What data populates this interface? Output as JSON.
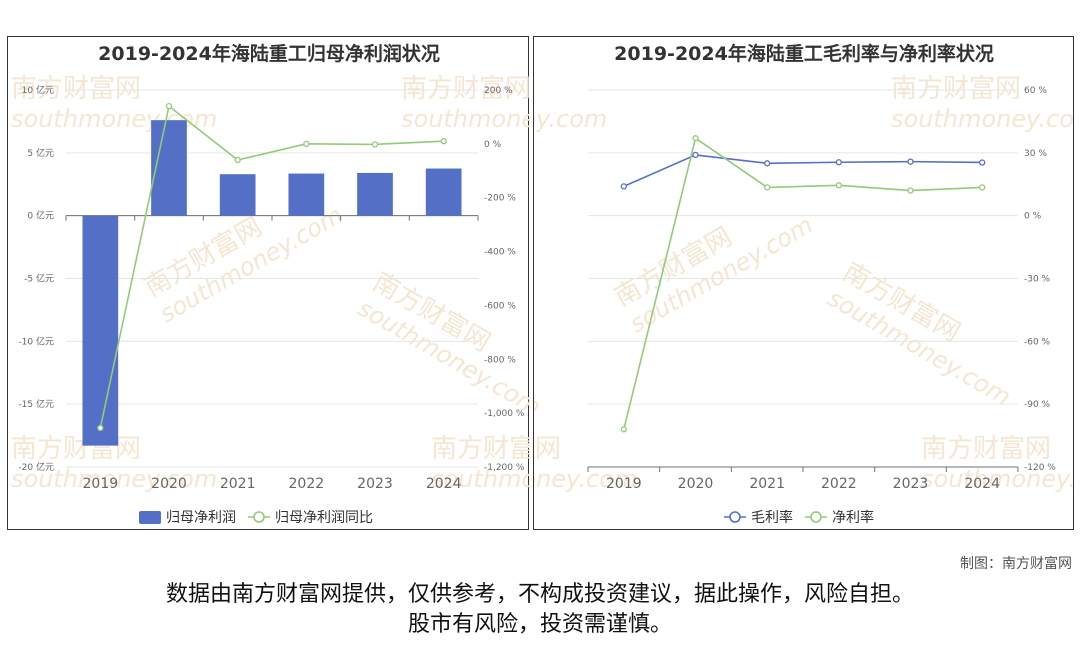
{
  "chart_data": [
    {
      "type": "bar",
      "title": "2019-2024年海陆重工归母净利润状况",
      "categories": [
        "2019",
        "2020",
        "2021",
        "2022",
        "2023",
        "2024"
      ],
      "series": [
        {
          "name": "归母净利润",
          "kind": "bar",
          "axis": "left",
          "values": [
            -18.3,
            7.6,
            3.3,
            3.35,
            3.4,
            3.75
          ]
        },
        {
          "name": "归母净利润同比",
          "kind": "line",
          "axis": "right",
          "values": [
            -1055,
            140,
            -60,
            0,
            -2,
            10
          ]
        }
      ],
      "y_left": {
        "ticks": [
          10,
          5,
          0,
          -5,
          -10,
          -15,
          -20
        ],
        "tick_labels": [
          "10 亿元",
          "5 亿元",
          "0 亿元",
          "-5 亿元",
          "-10 亿元",
          "-15 亿元",
          "-20 亿元"
        ],
        "ylim": [
          -20,
          10
        ]
      },
      "y_right": {
        "ticks": [
          200,
          0,
          -200,
          -400,
          -600,
          -800,
          -1000,
          -1200
        ],
        "tick_labels": [
          "200 %",
          "0 %",
          "-200 %",
          "-400 %",
          "-600 %",
          "-800 %",
          "-1,000 %",
          "-1,200 %"
        ],
        "ylim": [
          -1200,
          200
        ]
      },
      "colors": {
        "bar": "#5470c6",
        "line": "#91cc75"
      },
      "legend_position": "bottom",
      "grid": true
    },
    {
      "type": "line",
      "title": "2019-2024年海陆重工毛利率与净利率状况",
      "categories": [
        "2019",
        "2020",
        "2021",
        "2022",
        "2023",
        "2024"
      ],
      "series": [
        {
          "name": "毛利率",
          "values": [
            14,
            29,
            25,
            25.5,
            25.8,
            25.4
          ]
        },
        {
          "name": "净利率",
          "values": [
            -102,
            37,
            13.5,
            14.5,
            12,
            13.5
          ]
        }
      ],
      "y_right": {
        "ticks": [
          60,
          30,
          0,
          -30,
          -60,
          -90,
          -120
        ],
        "tick_labels": [
          "60 %",
          "30 %",
          "0 %",
          "-30 %",
          "-60 %",
          "-90 %",
          "-120 %"
        ],
        "ylim": [
          -120,
          60
        ]
      },
      "colors": {
        "毛利率": "#5470c6",
        "净利率": "#91cc75"
      },
      "legend_position": "bottom",
      "grid": true
    }
  ],
  "watermark": {
    "cn": "南方财富网",
    "en": "southmoney.com"
  },
  "footer": {
    "credit": "制图：南方财富网",
    "disclaimer_line1": "数据由南方财富网提供，仅供参考，不构成投资建议，据此操作，风险自担。",
    "disclaimer_line2": "股市有风险，投资需谨慎。"
  }
}
